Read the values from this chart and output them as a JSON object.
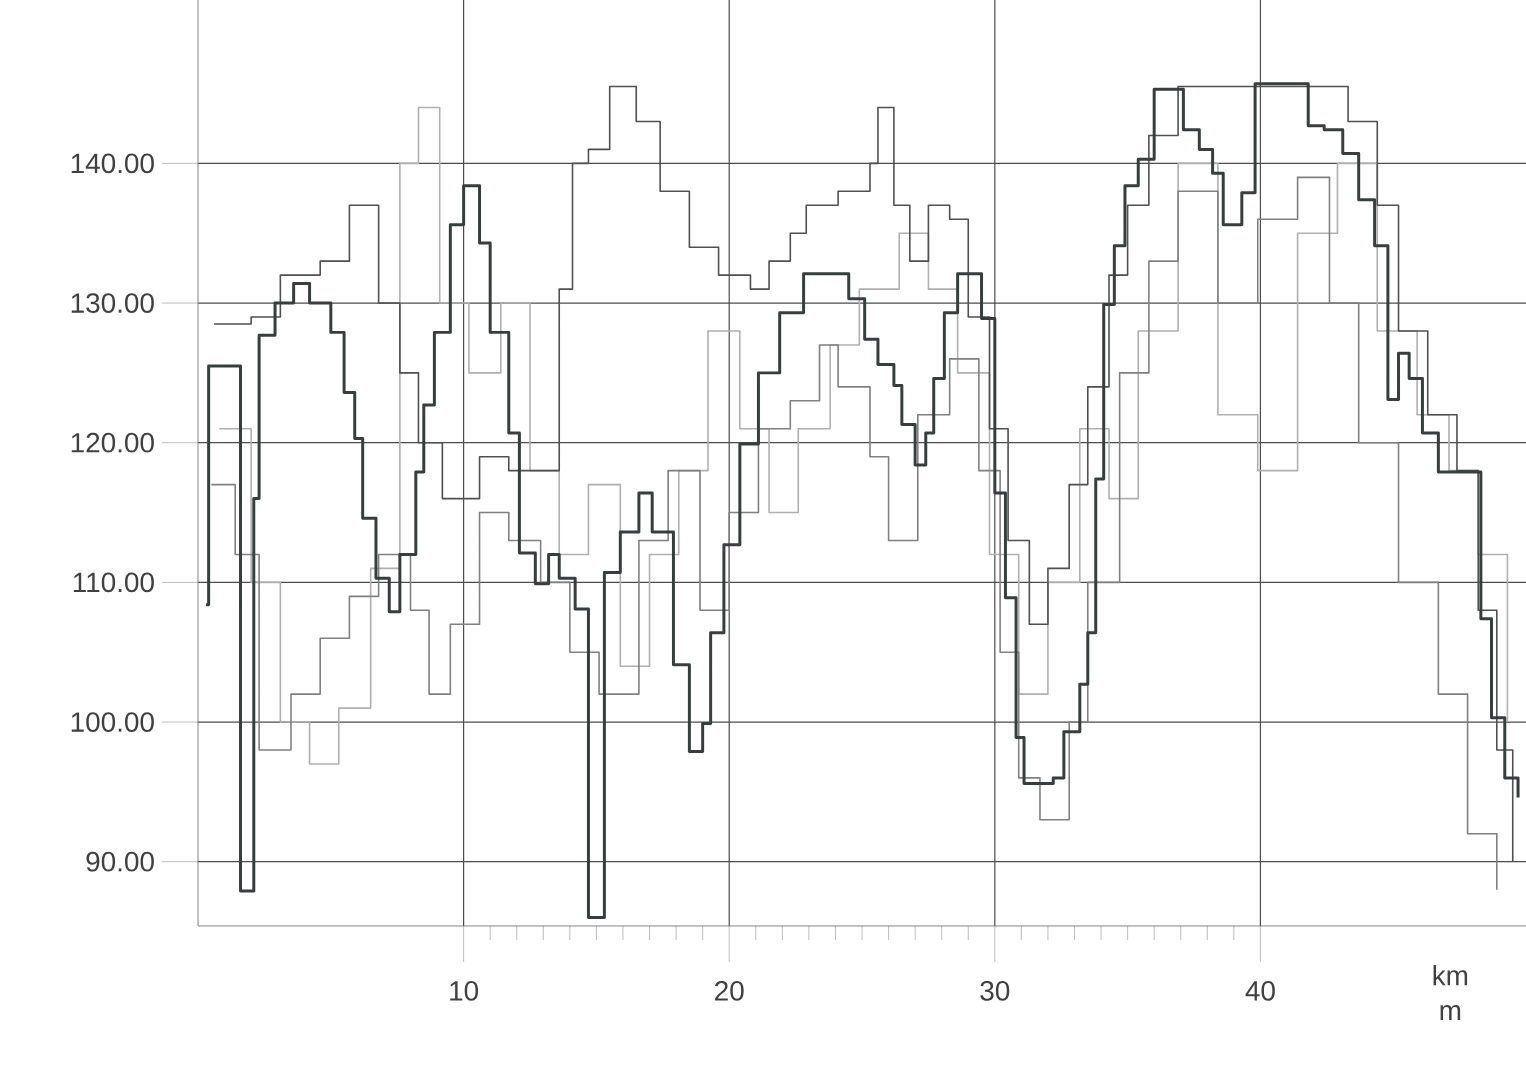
{
  "chart_data": {
    "type": "step",
    "xlabel": "km",
    "annotations": [
      "m"
    ],
    "xlim": [
      0,
      50
    ],
    "ylim": [
      85.4,
      151.7
    ],
    "xticks": [
      10,
      20,
      30,
      40
    ],
    "yticks": [
      {
        "value": 90,
        "label": "90.00"
      },
      {
        "value": 100,
        "label": "100.00"
      },
      {
        "value": 110,
        "label": "110.00"
      },
      {
        "value": 120,
        "label": "120.00"
      },
      {
        "value": 130,
        "label": "130.00"
      },
      {
        "value": 140,
        "label": "140.00"
      }
    ],
    "grid": true,
    "series": [
      {
        "color": "#b0b0b0",
        "x": [
          0.8,
          2.0,
          3.1,
          4.2,
          5.3,
          6.5,
          7.6,
          8.3,
          9.1,
          10.2,
          11.4,
          12.5,
          13.6,
          14.7,
          15.9,
          17.0,
          18.1,
          19.2,
          20.4,
          21.5,
          22.6,
          23.8,
          24.9,
          26.4,
          27.5,
          28.6,
          29.8,
          30.9,
          32.0,
          33.2,
          34.3,
          35.4,
          36.9,
          38.4,
          39.9,
          41.4,
          42.9,
          44.4,
          45.9,
          47.1,
          48.2,
          49.3
        ],
        "values": [
          121,
          110,
          100,
          97,
          101,
          111,
          140,
          144,
          130,
          125,
          130,
          118,
          112,
          117,
          104,
          112,
          118,
          128,
          121,
          115,
          121,
          127,
          131,
          135,
          131,
          125,
          112,
          102,
          110,
          121,
          116,
          128,
          140,
          122,
          118,
          135,
          140,
          128,
          122,
          118,
          112,
          100
        ]
      },
      {
        "color": "#808080",
        "x": [
          0.5,
          1.4,
          2.3,
          3.5,
          4.6,
          5.7,
          6.8,
          8.0,
          8.7,
          9.5,
          10.6,
          11.7,
          12.9,
          14.0,
          15.1,
          16.6,
          17.7,
          18.9,
          20.0,
          21.1,
          22.3,
          23.4,
          24.1,
          25.3,
          26.0,
          27.1,
          28.3,
          29.4,
          30.2,
          30.9,
          31.7,
          32.8,
          33.5,
          34.7,
          35.8,
          36.9,
          38.4,
          39.9,
          41.4,
          42.6,
          43.7,
          45.2,
          46.7,
          47.8,
          48.9
        ],
        "values": [
          117,
          112,
          98,
          102,
          106,
          109,
          112,
          108,
          102,
          107,
          115,
          113,
          110,
          105,
          102,
          113,
          118,
          108,
          115,
          121,
          123,
          127,
          124,
          119,
          113,
          122,
          126,
          118,
          105,
          96,
          93,
          100,
          110,
          125,
          133,
          138,
          130,
          136,
          139,
          130,
          120,
          110,
          102,
          92,
          88
        ]
      },
      {
        "color": "#505050",
        "x": [
          0.6,
          2.0,
          3.1,
          4.6,
          5.7,
          6.8,
          7.6,
          8.3,
          9.2,
          10.6,
          11.7,
          13.6,
          14.1,
          14.7,
          15.5,
          16.5,
          17.4,
          18.5,
          19.6,
          20.8,
          21.5,
          22.3,
          22.9,
          24.1,
          25.3,
          25.6,
          26.2,
          26.8,
          27.5,
          28.3,
          29.0,
          29.8,
          30.5,
          31.3,
          32.0,
          32.8,
          33.5,
          34.3,
          35.0,
          35.8,
          36.9,
          40.7,
          43.3,
          44.4,
          45.2,
          46.3,
          47.4,
          48.2,
          48.9,
          49.5
        ],
        "values": [
          128.5,
          129,
          132,
          133,
          137,
          130,
          125,
          120,
          116,
          119,
          118,
          131,
          140,
          141,
          145.5,
          143,
          138,
          134,
          132,
          131,
          133,
          135,
          137,
          138,
          140,
          144,
          137,
          133,
          137,
          136,
          129,
          121,
          113,
          107,
          111,
          117,
          124,
          132,
          137,
          142,
          145.5,
          145.5,
          143,
          137,
          128,
          122,
          118,
          108,
          98,
          90
        ]
      },
      {
        "color": "#383e3e",
        "x": [
          0.3,
          0.4,
          1.6,
          2.1,
          2.3,
          2.9,
          3.6,
          4.2,
          5.0,
          5.5,
          5.9,
          6.2,
          6.7,
          7.2,
          7.6,
          8.2,
          8.5,
          8.9,
          9.5,
          10.0,
          10.6,
          11.0,
          11.7,
          12.1,
          12.7,
          13.2,
          13.6,
          14.2,
          14.7,
          15.3,
          15.9,
          16.6,
          17.1,
          17.9,
          18.5,
          19.0,
          19.3,
          19.8,
          20.4,
          21.1,
          21.9,
          22.8,
          24.5,
          25.1,
          25.6,
          26.2,
          26.5,
          27.0,
          27.4,
          27.7,
          28.1,
          28.6,
          29.5,
          30.0,
          30.4,
          30.8,
          31.1,
          32.2,
          32.6,
          33.2,
          33.5,
          33.8,
          34.1,
          34.5,
          34.9,
          35.4,
          36.0,
          37.1,
          37.7,
          38.2,
          38.6,
          39.3,
          39.8,
          41.8,
          42.4,
          43.1,
          43.7,
          44.3,
          44.8,
          45.2,
          45.6,
          46.1,
          46.7,
          48.3,
          48.7,
          49.2,
          49.7
        ],
        "values": [
          108.4,
          125.5,
          87.9,
          116,
          127.7,
          130,
          131.4,
          130,
          127.9,
          123.6,
          120.3,
          114.6,
          110.3,
          107.9,
          112,
          117.9,
          122.7,
          127.9,
          135.6,
          138.4,
          134.3,
          127.9,
          120.7,
          112.1,
          109.9,
          112,
          110.3,
          108.1,
          86,
          110.7,
          113.6,
          116.4,
          113.6,
          104.1,
          97.9,
          99.9,
          106.4,
          112.7,
          119.9,
          125,
          129.3,
          132.1,
          130.3,
          127.4,
          125.6,
          124.1,
          121.3,
          118.4,
          120.7,
          124.6,
          129.3,
          132.1,
          128.9,
          116.4,
          108.9,
          98.9,
          95.6,
          96,
          99.3,
          102.7,
          106.4,
          117.4,
          129.9,
          134.1,
          138.4,
          140.3,
          145.3,
          142.4,
          141,
          139.3,
          135.6,
          137.9,
          145.7,
          142.7,
          142.4,
          140.7,
          137.4,
          134.1,
          123.1,
          126.4,
          124.6,
          120.7,
          117.9,
          107.4,
          100.3,
          96,
          94.6
        ]
      }
    ]
  }
}
